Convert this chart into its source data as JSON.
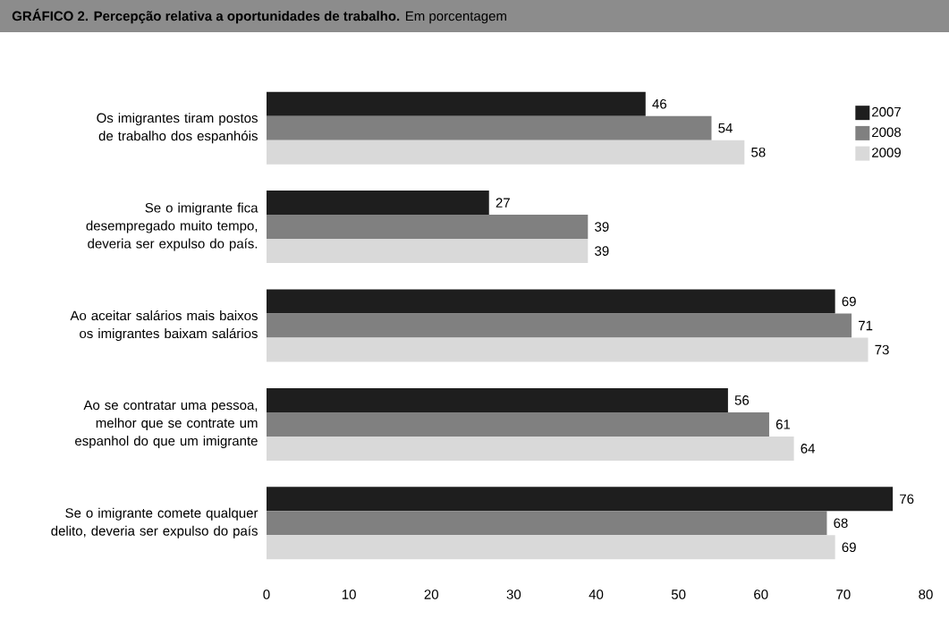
{
  "chart_data": {
    "type": "bar",
    "orientation": "horizontal",
    "title": "**GRÁFICO 2. Percepção relativa a oportunidades de trabalho.** Em porcentagem",
    "categories": [
      "Os imigrantes tiram postos de trabalho dos espanhóis",
      "Se o imigrante fica desempregado muito tempo, deveria ser expulso do país.",
      "Ao aceitar salários mais baixos os imigrantes baixam salários",
      "Ao se contratar uma pessoa, melhor que se contrate um espanhol do que um imigrante",
      "Se o imigrante comete qualquer delito, deveria ser expulso do país"
    ],
    "series": [
      {
        "name": "2007",
        "color": "#1e1e1e",
        "values": [
          46,
          27,
          69,
          56,
          76
        ]
      },
      {
        "name": "2008",
        "color": "#808080",
        "values": [
          54,
          39,
          71,
          61,
          68
        ]
      },
      {
        "name": "2009",
        "color": "#d9d9d9",
        "values": [
          58,
          39,
          73,
          64,
          69
        ]
      }
    ],
    "xlim": [
      0,
      80
    ],
    "xticks": [
      0,
      10,
      20,
      30,
      40,
      50,
      60,
      70,
      80
    ],
    "data_labels": true,
    "legend": "top right",
    "grid": false
  }
}
